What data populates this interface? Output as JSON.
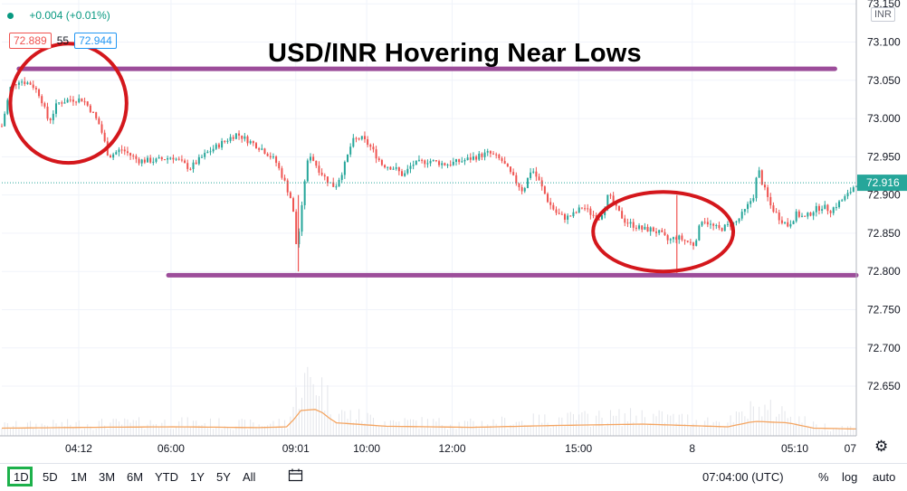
{
  "header": {
    "change_text": "+0.004 (+0.01%)",
    "sell_price": "72.889",
    "spread": "55",
    "buy_price": "72.944",
    "currency": "INR"
  },
  "chart_data": {
    "type": "candlestick",
    "title": "USD/INR Hovering Near Lows",
    "ylim": [
      72.585,
      73.155
    ],
    "y_ticks": [
      73.15,
      73.1,
      73.05,
      73.0,
      72.95,
      72.9,
      72.85,
      72.8,
      72.75,
      72.7,
      72.65
    ],
    "y_tick_labels": [
      "73.150",
      "73.100",
      "73.050",
      "73.000",
      "72.950",
      "72.900",
      "72.850",
      "72.800",
      "72.750",
      "72.700",
      "72.650"
    ],
    "x_tick_labels": [
      "04:12",
      "06:00",
      "09:01",
      "10:00",
      "12:00",
      "15:00",
      "8",
      "05:10",
      "07"
    ],
    "x_tick_fracs": [
      0.09,
      0.198,
      0.344,
      0.427,
      0.527,
      0.675,
      0.808,
      0.928,
      1.0
    ],
    "last_price": "72.916",
    "last_value": 72.916,
    "close_path": [
      [
        0.0,
        72.99
      ],
      [
        0.01,
        73.04
      ],
      [
        0.02,
        73.05
      ],
      [
        0.035,
        73.045
      ],
      [
        0.045,
        73.03
      ],
      [
        0.055,
        72.995
      ],
      [
        0.065,
        73.02
      ],
      [
        0.08,
        73.025
      ],
      [
        0.095,
        73.025
      ],
      [
        0.105,
        73.01
      ],
      [
        0.115,
        72.99
      ],
      [
        0.125,
        72.95
      ],
      [
        0.14,
        72.96
      ],
      [
        0.16,
        72.945
      ],
      [
        0.18,
        72.945
      ],
      [
        0.2,
        72.95
      ],
      [
        0.22,
        72.935
      ],
      [
        0.24,
        72.955
      ],
      [
        0.26,
        72.97
      ],
      [
        0.275,
        72.98
      ],
      [
        0.29,
        72.97
      ],
      [
        0.305,
        72.96
      ],
      [
        0.32,
        72.945
      ],
      [
        0.33,
        72.92
      ],
      [
        0.34,
        72.89
      ],
      [
        0.345,
        72.83
      ],
      [
        0.35,
        72.87
      ],
      [
        0.355,
        72.925
      ],
      [
        0.36,
        72.955
      ],
      [
        0.37,
        72.935
      ],
      [
        0.38,
        72.92
      ],
      [
        0.39,
        72.91
      ],
      [
        0.4,
        72.935
      ],
      [
        0.41,
        72.97
      ],
      [
        0.42,
        72.975
      ],
      [
        0.43,
        72.965
      ],
      [
        0.445,
        72.94
      ],
      [
        0.46,
        72.935
      ],
      [
        0.47,
        72.925
      ],
      [
        0.48,
        72.94
      ],
      [
        0.5,
        72.945
      ],
      [
        0.52,
        72.94
      ],
      [
        0.54,
        72.945
      ],
      [
        0.555,
        72.95
      ],
      [
        0.57,
        72.955
      ],
      [
        0.585,
        72.945
      ],
      [
        0.6,
        72.92
      ],
      [
        0.61,
        72.905
      ],
      [
        0.62,
        72.935
      ],
      [
        0.63,
        72.915
      ],
      [
        0.64,
        72.89
      ],
      [
        0.65,
        72.875
      ],
      [
        0.66,
        72.87
      ],
      [
        0.67,
        72.875
      ],
      [
        0.68,
        72.885
      ],
      [
        0.69,
        72.875
      ],
      [
        0.7,
        72.87
      ],
      [
        0.71,
        72.9
      ],
      [
        0.72,
        72.88
      ],
      [
        0.73,
        72.865
      ],
      [
        0.74,
        72.86
      ],
      [
        0.75,
        72.855
      ],
      [
        0.76,
        72.855
      ],
      [
        0.77,
        72.85
      ],
      [
        0.78,
        72.84
      ],
      [
        0.79,
        72.845
      ],
      [
        0.8,
        72.84
      ],
      [
        0.81,
        72.835
      ],
      [
        0.82,
        72.87
      ],
      [
        0.83,
        72.86
      ],
      [
        0.84,
        72.855
      ],
      [
        0.85,
        72.86
      ],
      [
        0.86,
        72.865
      ],
      [
        0.87,
        72.88
      ],
      [
        0.88,
        72.9
      ],
      [
        0.885,
        72.935
      ],
      [
        0.89,
        72.915
      ],
      [
        0.9,
        72.885
      ],
      [
        0.91,
        72.87
      ],
      [
        0.92,
        72.86
      ],
      [
        0.93,
        72.875
      ],
      [
        0.94,
        72.87
      ],
      [
        0.95,
        72.88
      ],
      [
        0.96,
        72.885
      ],
      [
        0.97,
        72.88
      ],
      [
        0.98,
        72.89
      ],
      [
        0.99,
        72.9
      ],
      [
        1.0,
        72.916
      ]
    ],
    "volume_levels": [
      [
        0.0,
        0.15
      ],
      [
        0.1,
        0.18
      ],
      [
        0.2,
        0.2
      ],
      [
        0.3,
        0.17
      ],
      [
        0.335,
        0.2
      ],
      [
        0.35,
        0.8
      ],
      [
        0.37,
        0.85
      ],
      [
        0.39,
        0.35
      ],
      [
        0.45,
        0.22
      ],
      [
        0.55,
        0.18
      ],
      [
        0.65,
        0.25
      ],
      [
        0.75,
        0.3
      ],
      [
        0.85,
        0.2
      ],
      [
        0.88,
        0.4
      ],
      [
        0.92,
        0.35
      ],
      [
        0.95,
        0.15
      ],
      [
        1.0,
        0.12
      ]
    ],
    "annotation_lines": [
      {
        "value": 73.065,
        "from": 0.02,
        "to": 0.975,
        "color": "#9c4d9a"
      },
      {
        "value": 72.795,
        "from": 0.195,
        "to": 1.0,
        "color": "#9c4d9a"
      }
    ],
    "annotation_ellipses": [
      {
        "cx": 0.078,
        "cy": 73.02,
        "rx": 0.068,
        "ry": 0.078,
        "color": "#d4171c"
      },
      {
        "cx": 0.774,
        "cy": 72.852,
        "rx": 0.082,
        "ry": 0.052,
        "color": "#d4171c"
      }
    ],
    "up_color": "#26a69a",
    "down_color": "#ef5350",
    "volume_line_color": "#f4a460"
  },
  "toolbar": {
    "timeframes": [
      "1D",
      "5D",
      "1M",
      "3M",
      "6M",
      "YTD",
      "1Y",
      "5Y",
      "All"
    ],
    "active": "1D",
    "clock": "07:04:00 (UTC)",
    "percent_label": "%",
    "log_label": "log",
    "auto_label": "auto"
  }
}
